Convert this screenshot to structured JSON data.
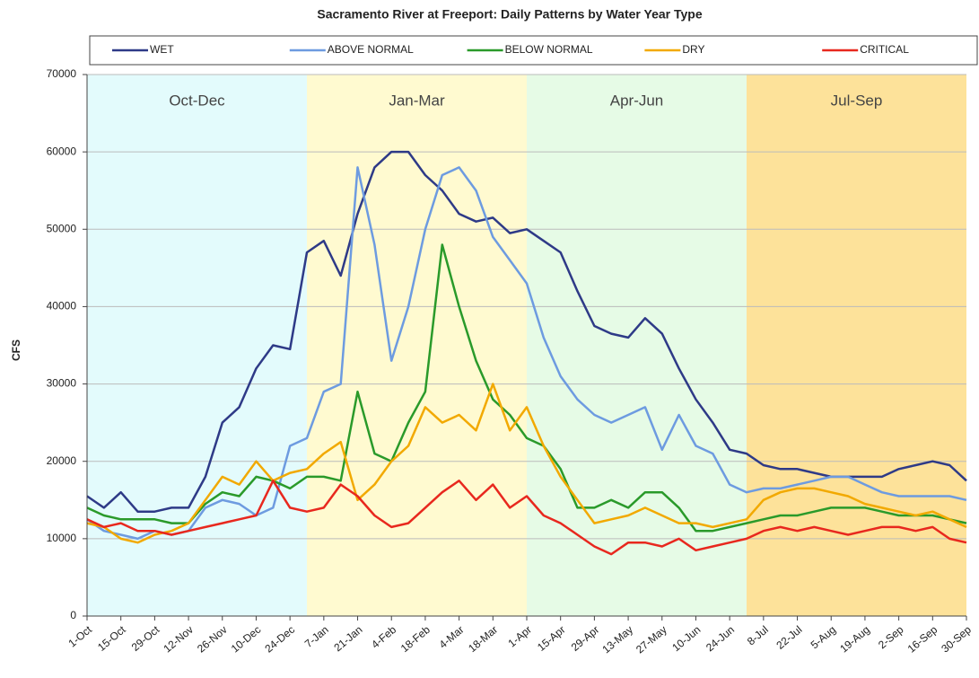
{
  "chart_data": {
    "type": "line",
    "title": "Sacramento River at Freeport: Daily Patterns by Water Year Type",
    "y_label": "CFS",
    "categories": [
      "1-Oct",
      null,
      "15-Oct",
      null,
      "29-Oct",
      null,
      "12-Nov",
      null,
      "26-Nov",
      null,
      "10-Dec",
      null,
      "24-Dec",
      null,
      "7-Jan",
      null,
      "21-Jan",
      null,
      "4-Feb",
      null,
      "18-Feb",
      null,
      "4-Mar",
      null,
      "18-Mar",
      null,
      "1-Apr",
      null,
      "15-Apr",
      null,
      "29-Apr",
      null,
      "13-May",
      null,
      "27-May",
      null,
      "10-Jun",
      null,
      "24-Jun",
      null,
      "8-Jul",
      null,
      "22-Jul",
      null,
      "5-Aug",
      null,
      "19-Aug",
      null,
      "2-Sep",
      null,
      "16-Sep",
      null,
      "30-Sep"
    ],
    "regions": [
      {
        "label": "Oct-Dec",
        "color": "#e3fbfc"
      },
      {
        "label": "Jan-Mar",
        "color": "#fffad0"
      },
      {
        "label": "Apr-Jun",
        "color": "#e6fbe6"
      },
      {
        "label": "Jul-Sep",
        "color": "#fde29a"
      }
    ],
    "series": [
      {
        "name": "WET",
        "color": "#2e3a87",
        "values": [
          15500,
          14000,
          16000,
          13500,
          13500,
          14000,
          14000,
          18000,
          25000,
          27000,
          32000,
          35000,
          34500,
          47000,
          48500,
          44000,
          52000,
          58000,
          60000,
          60000,
          57000,
          55000,
          52000,
          51000,
          51500,
          49500,
          50000,
          48500,
          47000,
          42000,
          37500,
          36500,
          36000,
          38500,
          36500,
          32000,
          28000,
          25000,
          21500,
          21000,
          19500,
          19000,
          19000,
          18500,
          18000,
          18000,
          18000,
          18000,
          19000,
          19500,
          20000,
          19500,
          17500
        ]
      },
      {
        "name": "ABOVE NORMAL",
        "color": "#6d9be0",
        "values": [
          12500,
          11000,
          10500,
          10000,
          11000,
          10500,
          11000,
          14000,
          15000,
          14500,
          13000,
          14000,
          22000,
          23000,
          29000,
          30000,
          58000,
          48000,
          33000,
          40000,
          50000,
          57000,
          58000,
          55000,
          49000,
          46000,
          43000,
          36000,
          31000,
          28000,
          26000,
          25000,
          26000,
          27000,
          21500,
          26000,
          22000,
          21000,
          17000,
          16000,
          16500,
          16500,
          17000,
          17500,
          18000,
          18000,
          17000,
          16000,
          15500,
          15500,
          15500,
          15500,
          15000
        ]
      },
      {
        "name": "BELOW NORMAL",
        "color": "#2a9a2a",
        "values": [
          14000,
          13000,
          12500,
          12500,
          12500,
          12000,
          12000,
          14500,
          16000,
          15500,
          18000,
          17500,
          16500,
          18000,
          18000,
          17500,
          29000,
          21000,
          20000,
          25000,
          29000,
          48000,
          40000,
          33000,
          28000,
          26000,
          23000,
          22000,
          19000,
          14000,
          14000,
          15000,
          14000,
          16000,
          16000,
          14000,
          11000,
          11000,
          11500,
          12000,
          12500,
          13000,
          13000,
          13500,
          14000,
          14000,
          14000,
          13500,
          13000,
          13000,
          13000,
          12500,
          12000
        ]
      },
      {
        "name": "DRY",
        "color": "#f2a900",
        "values": [
          12000,
          11500,
          10000,
          9500,
          10500,
          11000,
          12000,
          15000,
          18000,
          17000,
          20000,
          17500,
          18500,
          19000,
          21000,
          22500,
          15000,
          17000,
          20000,
          22000,
          27000,
          25000,
          26000,
          24000,
          30000,
          24000,
          27000,
          22000,
          18000,
          15000,
          12000,
          12500,
          13000,
          14000,
          13000,
          12000,
          12000,
          11500,
          12000,
          12500,
          15000,
          16000,
          16500,
          16500,
          16000,
          15500,
          14500,
          14000,
          13500,
          13000,
          13500,
          12500,
          11500
        ]
      },
      {
        "name": "CRITICAL",
        "color": "#e8281e",
        "values": [
          12500,
          11500,
          12000,
          11000,
          11000,
          10500,
          11000,
          11500,
          12000,
          12500,
          13000,
          17500,
          14000,
          13500,
          14000,
          17000,
          15500,
          13000,
          11500,
          12000,
          14000,
          16000,
          17500,
          15000,
          17000,
          14000,
          15500,
          13000,
          12000,
          10500,
          9000,
          8000,
          9500,
          9500,
          9000,
          10000,
          8500,
          9000,
          9500,
          10000,
          11000,
          11500,
          11000,
          11500,
          11000,
          10500,
          11000,
          11500,
          11500,
          11000,
          11500,
          10000,
          9500
        ]
      }
    ],
    "ylim": [
      0,
      70000
    ],
    "yticks": [
      0,
      10000,
      20000,
      30000,
      40000,
      50000,
      60000,
      70000
    ],
    "grid": true
  }
}
